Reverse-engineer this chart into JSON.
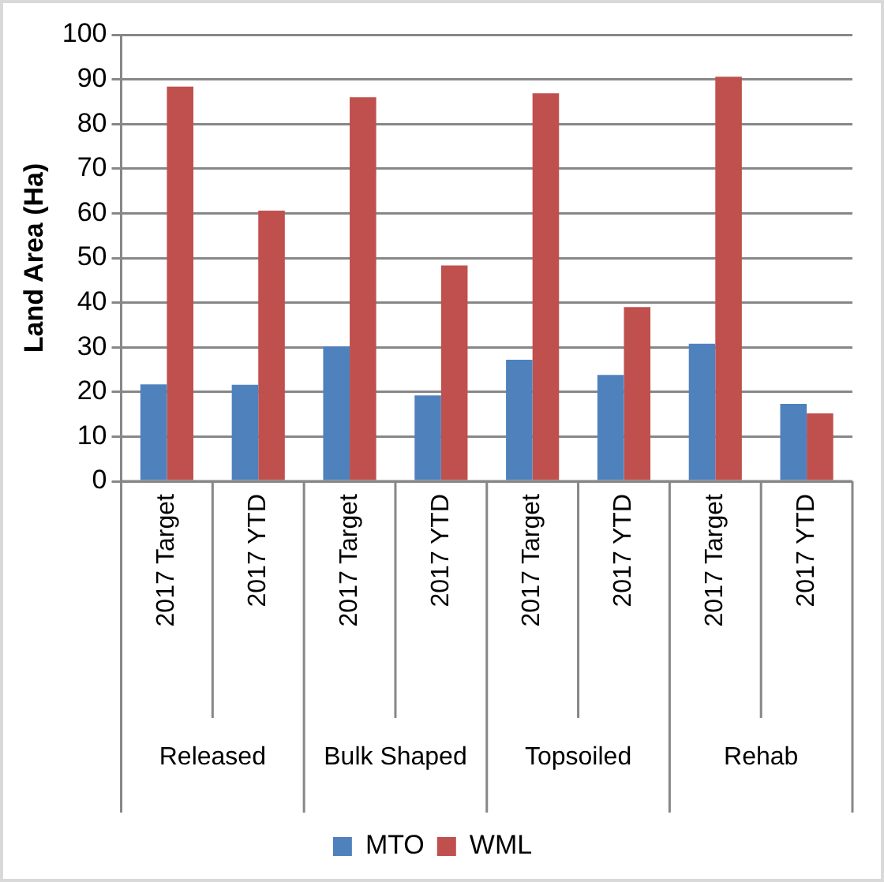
{
  "chart_data": {
    "type": "bar",
    "ylabel": "Land Area (Ha)",
    "categories": [
      "2017 Target",
      "2017 YTD",
      "2017 Target",
      "2017 YTD",
      "2017 Target",
      "2017 YTD",
      "2017 Target",
      "2017 YTD"
    ],
    "annotations": [
      "Released",
      "Bulk Shaped",
      "Topsoiled",
      "Rehab"
    ],
    "series": [
      {
        "name": "MTO",
        "color": "#4f81bd",
        "values": [
          21.7,
          21.6,
          30.2,
          19.2,
          27.2,
          23.8,
          30.8,
          17.3
        ]
      },
      {
        "name": "WML",
        "color": "#c0504d",
        "values": [
          88.4,
          60.6,
          86,
          48.3,
          86.9,
          39,
          90.6,
          15.2
        ]
      }
    ],
    "ylim": [
      0,
      100
    ],
    "yticks": [
      0,
      10,
      20,
      30,
      40,
      50,
      60,
      70,
      80,
      90,
      100
    ],
    "grid": "y",
    "legend": "bottom"
  }
}
